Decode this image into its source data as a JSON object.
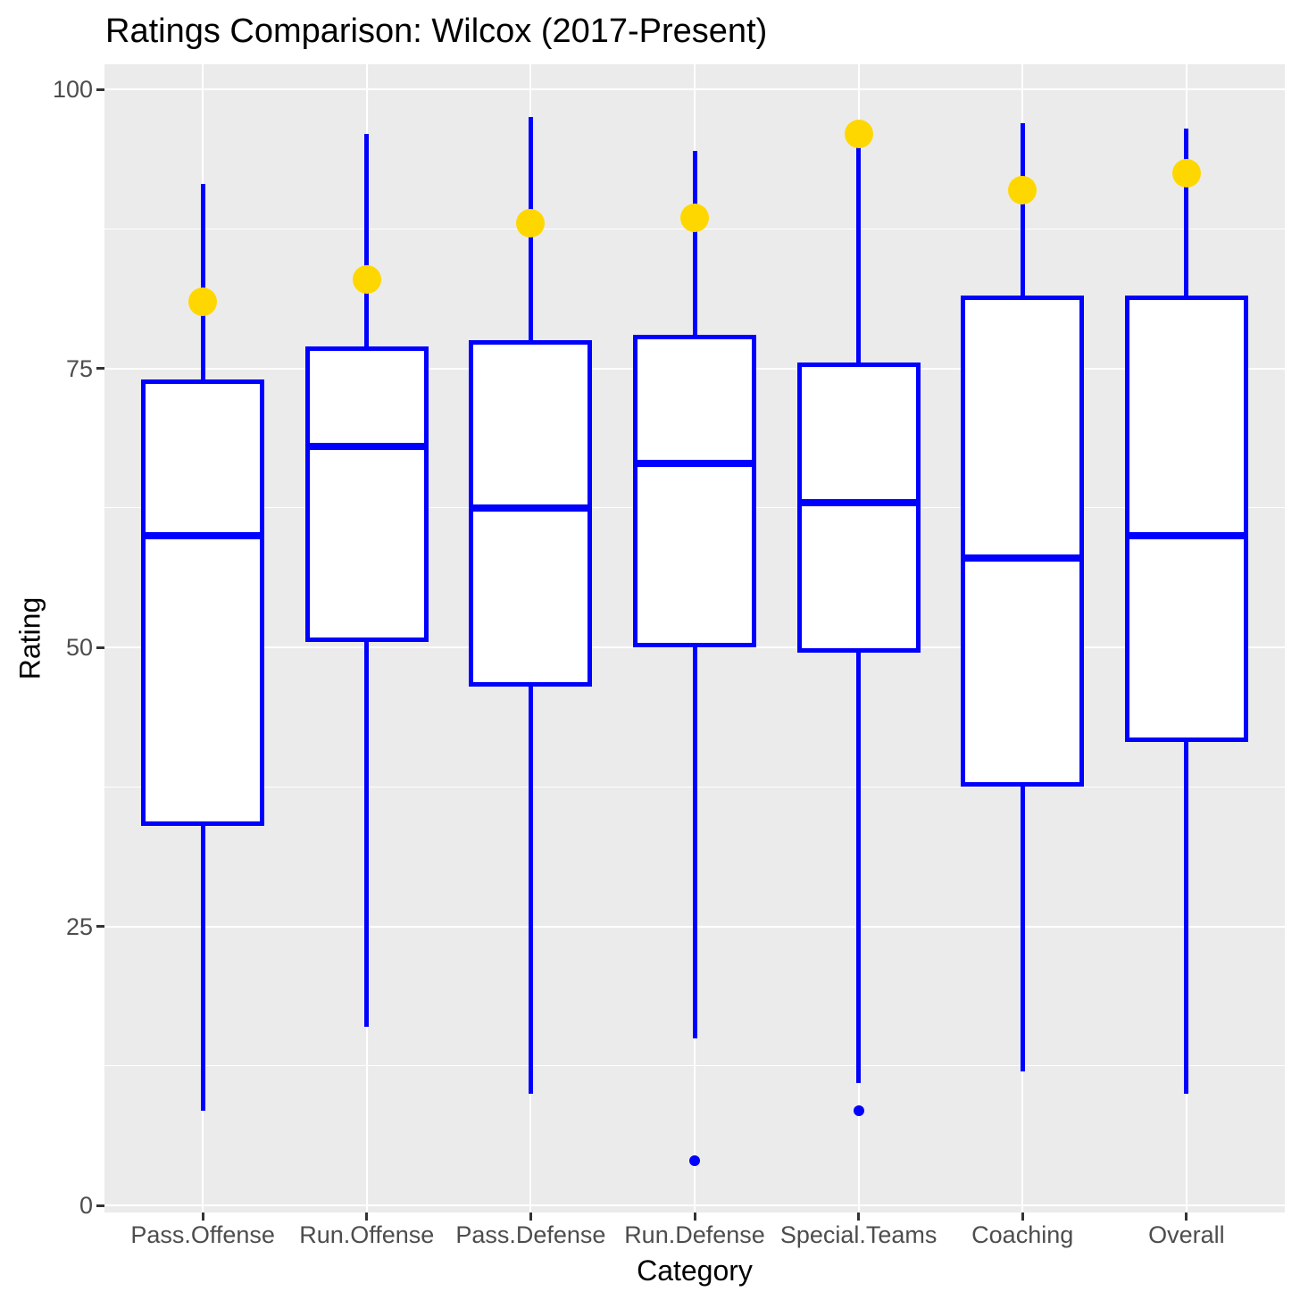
{
  "title": "Ratings Comparison: Wilcox (2017-Present)",
  "axes": {
    "x_title": "Category",
    "y_title": "Rating",
    "y_tick_labels": [
      "0",
      "25",
      "50",
      "75",
      "100"
    ]
  },
  "colors": {
    "box_stroke": "#0000FF",
    "box_fill": "#FFFFFF",
    "highlight_dot": "#FFD700",
    "outlier_dot": "#0000FF",
    "panel_background": "#EBEBEB",
    "gridline": "#FFFFFF",
    "tick_label_text": "#4D4D4D",
    "title_text": "#000000"
  },
  "chart_data": {
    "type": "boxplot",
    "title": "Ratings Comparison: Wilcox (2017-Present)",
    "xlabel": "Category",
    "ylabel": "Rating",
    "ylim": [
      0,
      100
    ],
    "grid": "on",
    "legend_position": "none",
    "y_major_ticks": [
      0,
      25,
      50,
      75,
      100
    ],
    "y_minor_gridlines": [
      12.5,
      37.5,
      62.5,
      87.5
    ],
    "categories": [
      "Pass.Offense",
      "Run.Offense",
      "Pass.Defense",
      "Run.Defense",
      "Special.Teams",
      "Coaching",
      "Overall"
    ],
    "boxes": [
      {
        "category": "Pass.Offense",
        "whisker_low": 8.5,
        "q1": 34,
        "median": 60,
        "q3": 74,
        "whisker_high": 91.5,
        "highlight_point": 81,
        "outliers": []
      },
      {
        "category": "Run.Offense",
        "whisker_low": 16,
        "q1": 50.5,
        "median": 68,
        "q3": 77,
        "whisker_high": 96,
        "highlight_point": 83,
        "outliers": []
      },
      {
        "category": "Pass.Defense",
        "whisker_low": 10,
        "q1": 46.5,
        "median": 62.5,
        "q3": 77.5,
        "whisker_high": 97.5,
        "highlight_point": 88,
        "outliers": []
      },
      {
        "category": "Run.Defense",
        "whisker_low": 15,
        "q1": 50,
        "median": 66.5,
        "q3": 78,
        "whisker_high": 94.5,
        "highlight_point": 88.5,
        "outliers": [
          4
        ]
      },
      {
        "category": "Special.Teams",
        "whisker_low": 11,
        "q1": 49.5,
        "median": 63,
        "q3": 75.5,
        "whisker_high": 95,
        "highlight_point": 96,
        "outliers": [
          8.5
        ]
      },
      {
        "category": "Coaching",
        "whisker_low": 12,
        "q1": 37.5,
        "median": 58,
        "q3": 81.5,
        "whisker_high": 97,
        "highlight_point": 91,
        "outliers": []
      },
      {
        "category": "Overall",
        "whisker_low": 10,
        "q1": 41.5,
        "median": 60,
        "q3": 81.5,
        "whisker_high": 96.5,
        "highlight_point": 92.5,
        "outliers": []
      }
    ]
  }
}
